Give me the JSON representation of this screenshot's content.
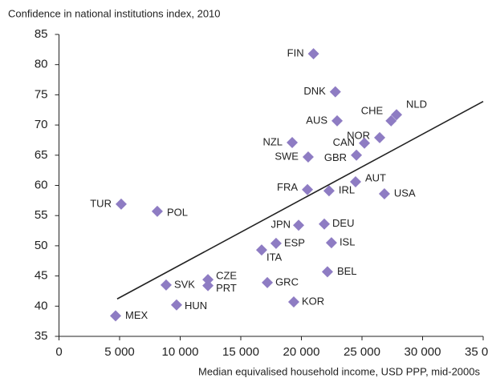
{
  "chart_data": {
    "type": "scatter",
    "y_axis_label": "Confidence in national institutions index, 2010",
    "x_axis_label": "Median equivalised household income, USD PPP, mid-2000s",
    "color": "#8e7cc3",
    "line_color": "#222222",
    "categories": [
      "FIN",
      "DNK",
      "AUS",
      "NLD",
      "CHE",
      "NOR",
      "CAN",
      "GBR",
      "NZL",
      "SWE",
      "AUT",
      "USA",
      "FRA",
      "IRL",
      "TUR",
      "POL",
      "JPN",
      "DEU",
      "ESP",
      "ISL",
      "ITA",
      "BEL",
      "GRC",
      "KOR",
      "CZE",
      "PRT",
      "SVK",
      "HUN",
      "MEX"
    ],
    "x": [
      21000,
      22800,
      22950,
      27850,
      27400,
      26460,
      25200,
      24540,
      19240,
      20560,
      24470,
      26850,
      20500,
      22280,
      5130,
      8110,
      19770,
      21890,
      17910,
      22480,
      16720,
      22150,
      17190,
      19370,
      12290,
      12290,
      8840,
      9700,
      4670
    ],
    "values": [
      81.8,
      75.5,
      70.7,
      71.7,
      70.7,
      67.9,
      67,
      65,
      67.1,
      64.7,
      60.6,
      58.6,
      59.3,
      59.1,
      56.9,
      55.7,
      53.4,
      53.6,
      50.4,
      50.5,
      49.3,
      45.7,
      43.9,
      40.7,
      44.4,
      43.4,
      43.5,
      40.2,
      38.4
    ],
    "trend_line": {
      "x": [
        4800,
        35000
      ],
      "y": [
        41.2,
        73.9
      ]
    },
    "xlim": [
      0,
      35000
    ],
    "ylim": [
      35,
      85
    ],
    "xticks": [
      0,
      {
        "value": 5000,
        "label": "5 000"
      },
      {
        "value": 10000,
        "label": "10 000"
      },
      {
        "value": 15000,
        "label": "15 000"
      },
      {
        "value": 20000,
        "label": "20 000"
      },
      {
        "value": 25000,
        "label": "25 000"
      },
      {
        "value": 30000,
        "label": "30 000"
      },
      {
        "value": 35000,
        "label": "35 000"
      }
    ],
    "yticks": [
      35,
      40,
      45,
      50,
      55,
      60,
      65,
      70,
      75,
      80,
      85
    ]
  }
}
